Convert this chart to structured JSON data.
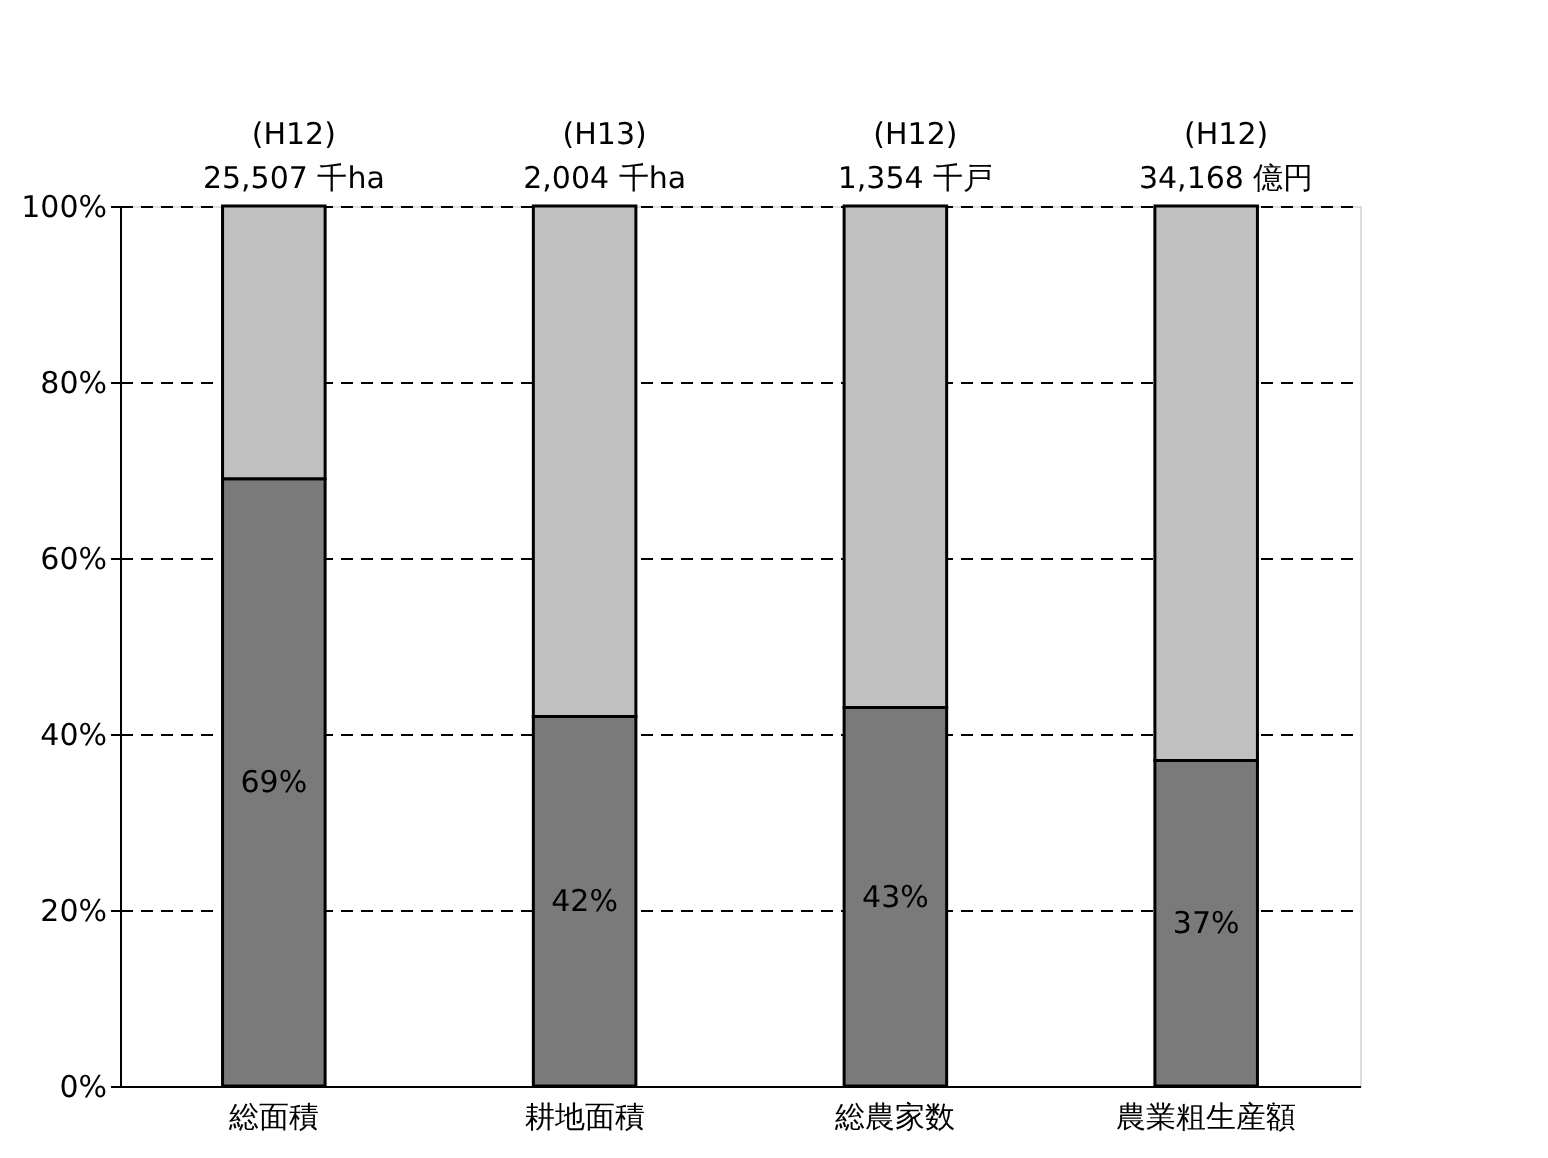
{
  "chart_data": {
    "type": "bar",
    "stacked": true,
    "categories": [
      "総面積",
      "耕地面積",
      "総農家数",
      "農業粗生産額"
    ],
    "series": [
      {
        "color": "#7a7a7a",
        "values": [
          69,
          42,
          43,
          37
        ],
        "value_labels": [
          "69%",
          "42%",
          "43%",
          "37%"
        ]
      },
      {
        "color": "#c0c0c0",
        "values": [
          31,
          58,
          57,
          63
        ]
      }
    ],
    "ylim": [
      0,
      100
    ],
    "yticks": [
      {
        "value": 0,
        "label": "0%"
      },
      {
        "value": 20,
        "label": "20%"
      },
      {
        "value": 40,
        "label": "40%"
      },
      {
        "value": 60,
        "label": "60%"
      },
      {
        "value": 80,
        "label": "80%"
      },
      {
        "value": 100,
        "label": "100%"
      }
    ],
    "grid": "y",
    "annotations": [
      {
        "text": "(H12)\n25,507 千ha",
        "x": "総面積",
        "y": 100
      },
      {
        "text": "(H13)\n2,004 千ha",
        "x": "耕地面積",
        "y": 100
      },
      {
        "text": "(H12)\n1,354 千戸",
        "x": "総農家数",
        "y": 100
      },
      {
        "text": "(H12)\n34,168 億円",
        "x": "農業粗生産額",
        "y": 100
      }
    ]
  }
}
